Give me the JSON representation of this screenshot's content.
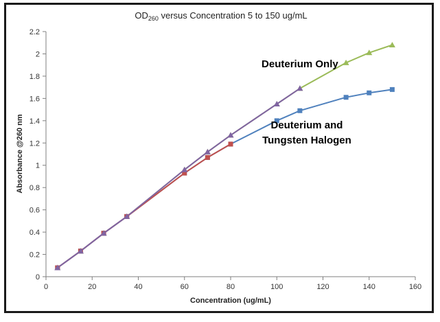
{
  "chart_data": {
    "type": "line",
    "title": {
      "prefix": "OD",
      "subscript": "260",
      "rest": " versus Concentration 5 to 150 ug/mL"
    },
    "xlabel": "Concentration (ug/mL)",
    "ylabel": "Absorbance @260 nm",
    "xlim": [
      0,
      160
    ],
    "ylim": [
      0,
      2.2
    ],
    "xticks": [
      "0",
      "20",
      "40",
      "60",
      "80",
      "100",
      "120",
      "140",
      "160"
    ],
    "yticks": [
      "0",
      "0.2",
      "0.4",
      "0.6",
      "0.8",
      "1",
      "1.2",
      "1.4",
      "1.6",
      "1.8",
      "2",
      "2.2"
    ],
    "grid": false,
    "annotations": [
      {
        "lines": [
          "Deuterium Only"
        ],
        "near": "upper curve",
        "x": 110,
        "y": 1.88
      },
      {
        "lines": [
          "Deuterium and",
          "Tungsten Halogen"
        ],
        "near": "lower curve",
        "x": 113,
        "y": 1.33
      }
    ],
    "series": [
      {
        "name": "Deuterium Only",
        "color": "#9bbb59",
        "marker": "triangle",
        "x": [
          5,
          15,
          25,
          35,
          60,
          70,
          80,
          100,
          110,
          130,
          140,
          150
        ],
        "y": [
          0.08,
          0.23,
          0.39,
          0.54,
          0.96,
          1.12,
          1.27,
          1.55,
          1.69,
          1.92,
          2.01,
          2.08
        ]
      },
      {
        "name": "Deuterium and Tungsten Halogen",
        "color": "#4f81bd",
        "marker": "square",
        "x": [
          5,
          15,
          25,
          35,
          60,
          70,
          80,
          100,
          110,
          130,
          140,
          150
        ],
        "y": [
          0.08,
          0.23,
          0.39,
          0.54,
          0.93,
          1.07,
          1.19,
          1.4,
          1.49,
          1.61,
          1.65,
          1.68
        ]
      },
      {
        "color": "#c0504d",
        "marker": "square",
        "x": [
          5,
          15,
          25,
          35,
          60,
          70,
          80
        ],
        "y": [
          0.08,
          0.23,
          0.39,
          0.54,
          0.93,
          1.07,
          1.19
        ]
      },
      {
        "color": "#8064a2",
        "marker": "triangle",
        "x": [
          5,
          15,
          25,
          35,
          60,
          70,
          80,
          100,
          110
        ],
        "y": [
          0.08,
          0.23,
          0.39,
          0.54,
          0.96,
          1.12,
          1.27,
          1.55,
          1.69
        ]
      }
    ]
  }
}
